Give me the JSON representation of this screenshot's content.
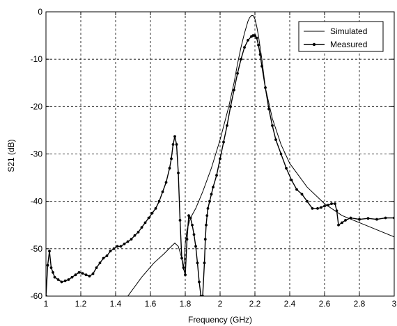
{
  "chart_data": {
    "type": "line",
    "title": "",
    "xlabel": "Frequency (GHz)",
    "ylabel": "S21 (dB)",
    "xlim": [
      1,
      3
    ],
    "ylim": [
      -60,
      0
    ],
    "xticks": [
      1,
      1.2,
      1.4,
      1.6,
      1.8,
      2,
      2.2,
      2.4,
      2.6,
      2.8,
      3
    ],
    "xtick_labels": [
      "1",
      "1.2",
      "1.4",
      "1.6",
      "1.8",
      "2",
      "2.2",
      "2.4",
      "2.6",
      "2.8",
      "3"
    ],
    "yticks": [
      0,
      -10,
      -20,
      -30,
      -40,
      -50,
      -60
    ],
    "ytick_labels": [
      "0",
      "-10",
      "-20",
      "-30",
      "-40",
      "-50",
      "-60"
    ],
    "grid": true,
    "legend_position": "top-right",
    "series": [
      {
        "name": "Simulated",
        "style": "solid",
        "color": "#000000",
        "x": [
          1.47,
          1.55,
          1.62,
          1.68,
          1.72,
          1.74,
          1.76,
          1.78,
          1.79,
          1.8,
          1.81,
          1.83,
          1.86,
          1.9,
          1.95,
          2.0,
          2.05,
          2.08,
          2.1,
          2.12,
          2.14,
          2.16,
          2.17,
          2.18,
          2.19,
          2.2,
          2.21,
          2.22,
          2.24,
          2.26,
          2.3,
          2.35,
          2.4,
          2.5,
          2.6,
          2.7,
          2.8,
          2.9,
          3.0
        ],
        "y": [
          -60,
          -56,
          -53,
          -51,
          -49.5,
          -48.8,
          -49.5,
          -52,
          -54.5,
          -49,
          -46,
          -43.5,
          -41.5,
          -38,
          -33,
          -27,
          -20,
          -15,
          -11,
          -7.5,
          -4.5,
          -2,
          -1.2,
          -0.8,
          -0.8,
          -1.5,
          -3,
          -5,
          -10,
          -16,
          -22.5,
          -28,
          -32,
          -37,
          -40.5,
          -43,
          -44.5,
          -46,
          -47.5
        ]
      },
      {
        "name": "Measured",
        "style": "solid-with-dot-markers",
        "color": "#000000",
        "x": [
          1.0,
          1.01,
          1.02,
          1.03,
          1.04,
          1.05,
          1.07,
          1.09,
          1.11,
          1.13,
          1.15,
          1.17,
          1.19,
          1.21,
          1.23,
          1.25,
          1.27,
          1.29,
          1.31,
          1.33,
          1.35,
          1.37,
          1.39,
          1.41,
          1.43,
          1.45,
          1.47,
          1.49,
          1.51,
          1.53,
          1.55,
          1.57,
          1.59,
          1.61,
          1.63,
          1.65,
          1.67,
          1.69,
          1.71,
          1.72,
          1.73,
          1.74,
          1.75,
          1.76,
          1.77,
          1.78,
          1.79,
          1.8,
          1.81,
          1.82,
          1.83,
          1.84,
          1.85,
          1.86,
          1.87,
          1.88,
          1.89,
          1.9,
          1.91,
          1.915,
          1.92,
          1.925,
          1.93,
          1.94,
          1.95,
          1.96,
          1.98,
          2.0,
          2.02,
          2.04,
          2.06,
          2.08,
          2.1,
          2.12,
          2.14,
          2.16,
          2.18,
          2.19,
          2.2,
          2.21,
          2.22,
          2.23,
          2.24,
          2.26,
          2.28,
          2.3,
          2.32,
          2.35,
          2.38,
          2.41,
          2.44,
          2.47,
          2.5,
          2.53,
          2.56,
          2.58,
          2.6,
          2.62,
          2.64,
          2.66,
          2.67,
          2.68,
          2.7,
          2.72,
          2.75,
          2.8,
          2.85,
          2.9,
          2.95,
          3.0
        ],
        "y": [
          -60,
          -53.5,
          -50.5,
          -54,
          -55,
          -56,
          -56.5,
          -57,
          -56.8,
          -56.5,
          -56,
          -55.5,
          -55,
          -55.2,
          -55.5,
          -55.8,
          -55.3,
          -54,
          -53,
          -52,
          -51.5,
          -50.5,
          -50,
          -49.5,
          -49.5,
          -49,
          -48.5,
          -48,
          -47.2,
          -46.5,
          -45.5,
          -44.5,
          -43.5,
          -42.5,
          -41.5,
          -40,
          -38,
          -36,
          -33,
          -31,
          -28,
          -26.3,
          -28,
          -34,
          -44,
          -52,
          -54,
          -55.5,
          -48,
          -43,
          -43.5,
          -45,
          -47,
          -49.5,
          -53,
          -57,
          -60,
          -60,
          -53,
          -48,
          -45,
          -43,
          -41.5,
          -40,
          -38.5,
          -37,
          -34.5,
          -31,
          -27.5,
          -24,
          -20,
          -16.5,
          -13,
          -10,
          -7.5,
          -6,
          -5.2,
          -5,
          -5,
          -5.5,
          -7,
          -9,
          -11.5,
          -16,
          -20.5,
          -24,
          -27,
          -30,
          -33,
          -35.5,
          -37.5,
          -38.5,
          -40,
          -41.5,
          -41.5,
          -41.3,
          -41,
          -40.8,
          -40.5,
          -40.5,
          -42,
          -45,
          -44.5,
          -44,
          -43.5,
          -43.8,
          -43.6,
          -43.8,
          -43.5,
          -43.5
        ]
      }
    ]
  }
}
